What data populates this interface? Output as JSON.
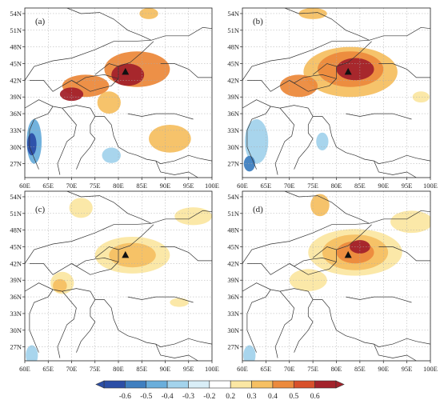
{
  "panels": [
    {
      "id": "a",
      "label": "(a)",
      "marker": [
        81.5,
        43.5
      ]
    },
    {
      "id": "b",
      "label": "(b)",
      "marker": [
        82.5,
        43.5
      ]
    },
    {
      "id": "c",
      "label": "(c)",
      "marker": [
        81.5,
        43.5
      ]
    },
    {
      "id": "d",
      "label": "(d)",
      "marker": [
        82.5,
        43.5
      ]
    }
  ],
  "x_ticks": [
    "60E",
    "65E",
    "70E",
    "75E",
    "80E",
    "85E",
    "90E",
    "95E",
    "100E"
  ],
  "y_ticks": [
    "27N",
    "30N",
    "33N",
    "36N",
    "39N",
    "42N",
    "45N",
    "48N",
    "51N",
    "54N"
  ],
  "extent": {
    "lon": [
      60,
      100
    ],
    "lat": [
      24.5,
      55
    ]
  },
  "colorbar": {
    "labels": [
      "-0.6",
      "-0.5",
      "-0.4",
      "-0.3",
      "-0.2",
      "0.2",
      "0.3",
      "0.4",
      "0.5",
      "0.6"
    ],
    "colors": [
      "#2b4ea6",
      "#3f7fc0",
      "#6aaedb",
      "#a3d3ec",
      "#d9eef7",
      "#ffffff",
      "#fbe7a3",
      "#f6c063",
      "#ec8a3d",
      "#d8502b",
      "#a3222b"
    ]
  },
  "fields": {
    "a": [
      {
        "lon": 84,
        "lat": 44,
        "rx": 7,
        "ry": 3.2,
        "level": 0.5
      },
      {
        "lon": 82,
        "lat": 43,
        "rx": 3.5,
        "ry": 2,
        "level": 0.6
      },
      {
        "lon": 73,
        "lat": 41,
        "rx": 5,
        "ry": 2,
        "level": 0.5
      },
      {
        "lon": 70,
        "lat": 39.5,
        "rx": 2.5,
        "ry": 1.2,
        "level": 0.6
      },
      {
        "lon": 78,
        "lat": 38,
        "rx": 2.5,
        "ry": 2,
        "level": 0.4
      },
      {
        "lon": 91,
        "lat": 31.5,
        "rx": 4.5,
        "ry": 2.5,
        "level": 0.4
      },
      {
        "lon": 62,
        "lat": 31,
        "rx": 1.6,
        "ry": 4,
        "level": -0.4
      },
      {
        "lon": 61.5,
        "lat": 30.5,
        "rx": 1,
        "ry": 2,
        "level": -0.6
      },
      {
        "lon": 78.5,
        "lat": 28.5,
        "rx": 2,
        "ry": 1.4,
        "level": -0.3
      },
      {
        "lon": 86.5,
        "lat": 54,
        "rx": 2,
        "ry": 1,
        "level": 0.4
      }
    ],
    "b": [
      {
        "lon": 83,
        "lat": 43.5,
        "rx": 10,
        "ry": 4.5,
        "level": 0.4
      },
      {
        "lon": 83,
        "lat": 44,
        "rx": 7,
        "ry": 3.2,
        "level": 0.5
      },
      {
        "lon": 84,
        "lat": 44,
        "rx": 4,
        "ry": 2,
        "level": 0.6
      },
      {
        "lon": 72,
        "lat": 41,
        "rx": 4,
        "ry": 2,
        "level": 0.5
      },
      {
        "lon": 75,
        "lat": 54,
        "rx": 3,
        "ry": 1,
        "level": 0.4
      },
      {
        "lon": 98,
        "lat": 39,
        "rx": 1.8,
        "ry": 1,
        "level": 0.3
      },
      {
        "lon": 63,
        "lat": 31,
        "rx": 2.5,
        "ry": 4,
        "level": -0.3
      },
      {
        "lon": 61.5,
        "lat": 27,
        "rx": 1.2,
        "ry": 1.4,
        "level": -0.5
      },
      {
        "lon": 77,
        "lat": 31,
        "rx": 1.3,
        "ry": 1.6,
        "level": -0.3
      }
    ],
    "c": [
      {
        "lon": 83,
        "lat": 43.5,
        "rx": 8,
        "ry": 3.3,
        "level": 0.3
      },
      {
        "lon": 83,
        "lat": 43.5,
        "rx": 5,
        "ry": 2.2,
        "level": 0.4
      },
      {
        "lon": 96,
        "lat": 50.5,
        "rx": 4,
        "ry": 1.6,
        "level": 0.3
      },
      {
        "lon": 72,
        "lat": 52,
        "rx": 2.5,
        "ry": 1.8,
        "level": 0.3
      },
      {
        "lon": 68,
        "lat": 38.5,
        "rx": 2.5,
        "ry": 2,
        "level": 0.3
      },
      {
        "lon": 67.5,
        "lat": 38,
        "rx": 1.5,
        "ry": 1.2,
        "level": 0.4
      },
      {
        "lon": 93,
        "lat": 35,
        "rx": 2,
        "ry": 0.8,
        "level": 0.3
      },
      {
        "lon": 61.5,
        "lat": 25.5,
        "rx": 1.3,
        "ry": 1.8,
        "level": -0.3
      }
    ],
    "d": [
      {
        "lon": 84,
        "lat": 44,
        "rx": 10,
        "ry": 4.2,
        "level": 0.3
      },
      {
        "lon": 84,
        "lat": 44,
        "rx": 7,
        "ry": 3.2,
        "level": 0.4
      },
      {
        "lon": 84,
        "lat": 44,
        "rx": 4,
        "ry": 2,
        "level": 0.5
      },
      {
        "lon": 85,
        "lat": 45,
        "rx": 2.2,
        "ry": 1.2,
        "level": 0.6
      },
      {
        "lon": 96,
        "lat": 49.5,
        "rx": 4.5,
        "ry": 2,
        "level": 0.3
      },
      {
        "lon": 74,
        "lat": 39,
        "rx": 4,
        "ry": 2,
        "level": 0.3
      },
      {
        "lon": 76.5,
        "lat": 52.5,
        "rx": 2,
        "ry": 2,
        "level": 0.4
      },
      {
        "lon": 61.5,
        "lat": 25.5,
        "rx": 1.3,
        "ry": 1.8,
        "level": -0.3
      }
    ]
  }
}
